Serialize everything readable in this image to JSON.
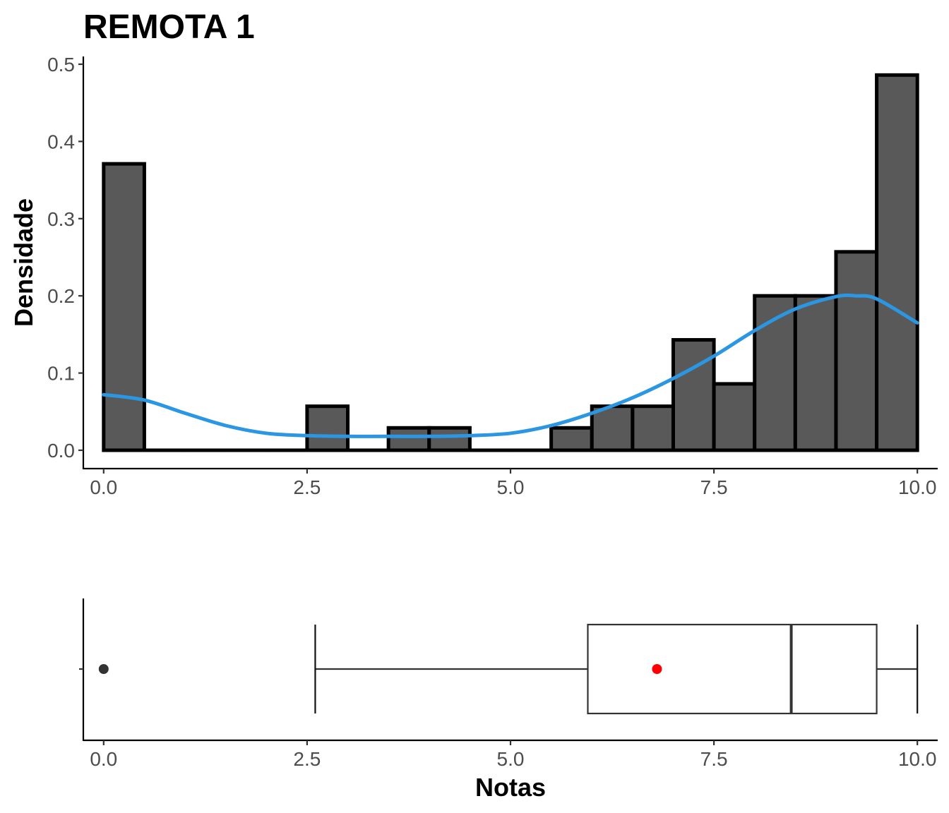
{
  "chart_data": [
    {
      "type": "histogram",
      "title": "REMOTA 1",
      "ylabel": "Densidade",
      "xlabel": "",
      "xlim": [
        -0.25,
        10.25
      ],
      "ylim": [
        0,
        0.5
      ],
      "x_ticks": [
        "0.0",
        "2.5",
        "5.0",
        "7.5",
        "10.0"
      ],
      "y_ticks": [
        "0.0",
        "0.1",
        "0.2",
        "0.3",
        "0.4",
        "0.5"
      ],
      "grid": false,
      "bin_width": 0.5,
      "bins": [
        {
          "x0": 0.0,
          "x1": 0.5,
          "density": 0.371
        },
        {
          "x0": 0.5,
          "x1": 1.0,
          "density": 0.0
        },
        {
          "x0": 1.0,
          "x1": 1.5,
          "density": 0.0
        },
        {
          "x0": 1.5,
          "x1": 2.0,
          "density": 0.0
        },
        {
          "x0": 2.0,
          "x1": 2.5,
          "density": 0.0
        },
        {
          "x0": 2.5,
          "x1": 3.0,
          "density": 0.057
        },
        {
          "x0": 3.0,
          "x1": 3.5,
          "density": 0.0
        },
        {
          "x0": 3.5,
          "x1": 4.0,
          "density": 0.029
        },
        {
          "x0": 4.0,
          "x1": 4.5,
          "density": 0.029
        },
        {
          "x0": 4.5,
          "x1": 5.0,
          "density": 0.0
        },
        {
          "x0": 5.0,
          "x1": 5.5,
          "density": 0.0
        },
        {
          "x0": 5.5,
          "x1": 6.0,
          "density": 0.029
        },
        {
          "x0": 6.0,
          "x1": 6.5,
          "density": 0.057
        },
        {
          "x0": 6.5,
          "x1": 7.0,
          "density": 0.057
        },
        {
          "x0": 7.0,
          "x1": 7.5,
          "density": 0.143
        },
        {
          "x0": 7.5,
          "x1": 8.0,
          "density": 0.086
        },
        {
          "x0": 8.0,
          "x1": 8.5,
          "density": 0.2
        },
        {
          "x0": 8.5,
          "x1": 9.0,
          "density": 0.2
        },
        {
          "x0": 9.0,
          "x1": 9.5,
          "density": 0.257
        },
        {
          "x0": 9.5,
          "x1": 10.0,
          "density": 0.486
        }
      ],
      "density_curve": {
        "color": "#2B96E1",
        "x": [
          0,
          0.5,
          1.0,
          1.5,
          2.0,
          2.5,
          3.0,
          3.5,
          4.0,
          4.5,
          5.0,
          5.5,
          6.0,
          6.5,
          7.0,
          7.5,
          8.0,
          8.5,
          9.0,
          9.25,
          9.5,
          10.0
        ],
        "y": [
          0.072,
          0.065,
          0.048,
          0.032,
          0.022,
          0.019,
          0.018,
          0.018,
          0.018,
          0.019,
          0.022,
          0.032,
          0.048,
          0.068,
          0.093,
          0.122,
          0.155,
          0.183,
          0.199,
          0.2,
          0.196,
          0.165
        ]
      },
      "bar_fill": "#595959",
      "bar_outline": "#000000"
    },
    {
      "type": "boxplot",
      "xlabel": "Notas",
      "xlim": [
        -0.25,
        10.25
      ],
      "x_ticks": [
        "0.0",
        "2.5",
        "5.0",
        "7.5",
        "10.0"
      ],
      "whisker_low": 2.6,
      "q1": 5.95,
      "median": 8.45,
      "q3": 9.5,
      "whisker_high": 10.0,
      "mean": 6.8,
      "outliers": [
        0.0
      ],
      "mean_color": "#FF0000",
      "outlier_color": "#333333"
    }
  ]
}
